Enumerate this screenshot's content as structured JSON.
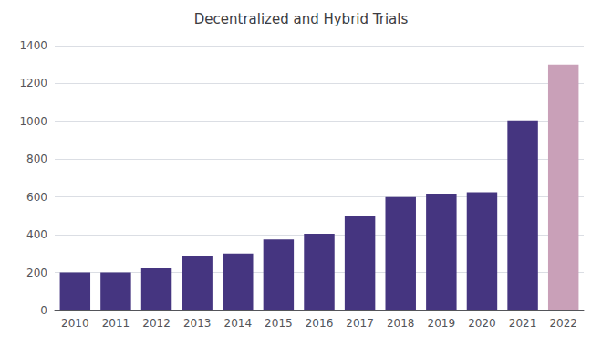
{
  "chart_data": {
    "type": "bar",
    "title": "Decentralized and Hybrid Trials",
    "categories": [
      "2010",
      "2011",
      "2012",
      "2013",
      "2014",
      "2015",
      "2016",
      "2017",
      "2018",
      "2019",
      "2020",
      "2021",
      "2022"
    ],
    "values": [
      200,
      200,
      225,
      290,
      300,
      375,
      405,
      500,
      600,
      618,
      625,
      1005,
      1300
    ],
    "colors": [
      "#453580",
      "#453580",
      "#453580",
      "#453580",
      "#453580",
      "#453580",
      "#453580",
      "#453580",
      "#453580",
      "#453580",
      "#453580",
      "#453580",
      "#c9a0b8"
    ],
    "ylim": [
      0,
      1400
    ],
    "yticks": [
      0,
      200,
      400,
      600,
      800,
      1000,
      1200,
      1400
    ],
    "grid": true
  }
}
